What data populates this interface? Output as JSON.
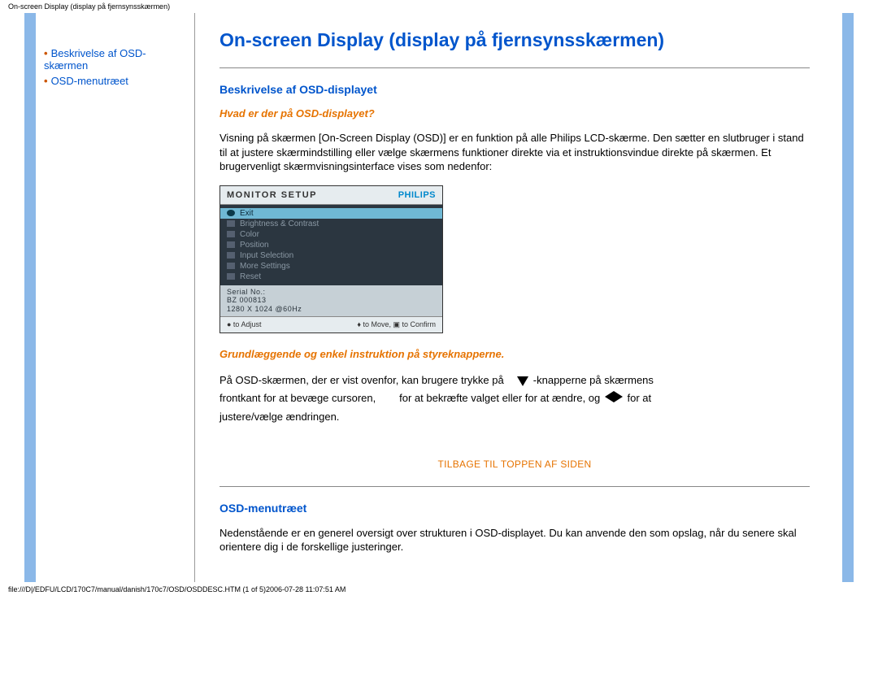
{
  "header": {
    "breadcrumb": "On-screen Display (display på fjernsynsskærmen)"
  },
  "sidebar": {
    "items": [
      {
        "label": "Beskrivelse af OSD-skærmen"
      },
      {
        "label": "OSD-menutræet"
      }
    ]
  },
  "main": {
    "title": "On-screen Display (display på fjernsynsskærmen)",
    "section1": {
      "heading": "Beskrivelse af OSD-displayet",
      "sub1": "Hvad er der på OSD-displayet?",
      "para1": "Visning på skærmen [On-Screen Display (OSD)] er en funktion på alle Philips LCD-skærme. Den sætter en slutbruger i stand til at justere skærmindstilling eller vælge skærmens funktioner direkte via et instruktionsvindue direkte på skærmen. Et brugervenligt skærmvisningsinterface vises som nedenfor:",
      "sub2": "Grundlæggende og enkel instruktion på styreknapperne.",
      "inline": {
        "t1": "På OSD-skærmen, der er vist ovenfor, kan brugere trykke på",
        "t2": "-knapperne på skærmens",
        "t3": "frontkant for at bevæge cursoren,",
        "t4": "for at bekræfte valget eller for at ændre, og",
        "t5": "for at",
        "t6": "justere/vælge ændringen."
      }
    },
    "osd": {
      "title": "MONITOR SETUP",
      "brand": "PHILIPS",
      "items": [
        {
          "label": "Exit",
          "selected": true
        },
        {
          "label": "Brightness & Contrast",
          "selected": false
        },
        {
          "label": "Color",
          "selected": false
        },
        {
          "label": "Position",
          "selected": false
        },
        {
          "label": "Input Selection",
          "selected": false
        },
        {
          "label": "More Settings",
          "selected": false
        },
        {
          "label": "Reset",
          "selected": false
        }
      ],
      "serial_label": "Serial No.:",
      "serial_value": "BZ 000813",
      "resolution": "1280 X 1024 @60Hz",
      "footer_left": "● to Adjust",
      "footer_right": "♦ to Move, ▣ to Confirm"
    },
    "back_to_top": "TILBAGE TIL TOPPEN AF SIDEN",
    "section2": {
      "heading": "OSD-menutræet",
      "para1": "Nedenstående er en generel oversigt over strukturen i OSD-displayet. Du kan anvende den som opslag, når du senere skal orientere dig i de forskellige justeringer."
    }
  },
  "footer": {
    "path": "file:///D|/EDFU/LCD/170C7/manual/danish/170c7/OSD/OSDDESC.HTM (1 of 5)2006-07-28 11:07:51 AM"
  },
  "colors": {
    "sidebar_bar": "#8bb8e8",
    "link": "#0055cc",
    "accent": "#e67300",
    "osd_sel_bg": "#6fb8d4",
    "osd_body_bg": "#2b3640"
  }
}
